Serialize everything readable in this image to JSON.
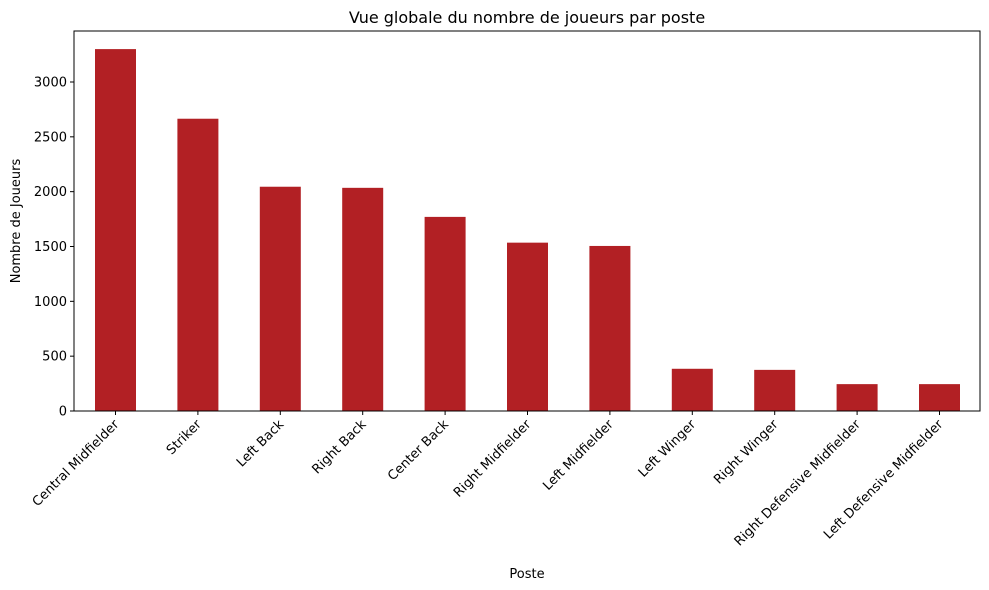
{
  "chart_data": {
    "type": "bar",
    "title": "Vue globale du nombre de joueurs par poste",
    "xlabel": "Poste",
    "ylabel": "Nombre de Joueurs",
    "categories": [
      "Central Midfielder",
      "Striker",
      "Left Back",
      "Right Back",
      "Center Back",
      "Right Midfielder",
      "Left Midfielder",
      "Left Winger",
      "Right Winger",
      "Right Defensive Midfielder",
      "Left Defensive Midfielder"
    ],
    "values": [
      3300,
      2665,
      2045,
      2035,
      1770,
      1535,
      1505,
      385,
      375,
      245,
      245
    ],
    "ylim": [
      0,
      3465
    ],
    "yticks": [
      0,
      500,
      1000,
      1500,
      2000,
      2500,
      3000
    ],
    "bar_color": "#b22024",
    "grid": false,
    "legend": "none"
  }
}
